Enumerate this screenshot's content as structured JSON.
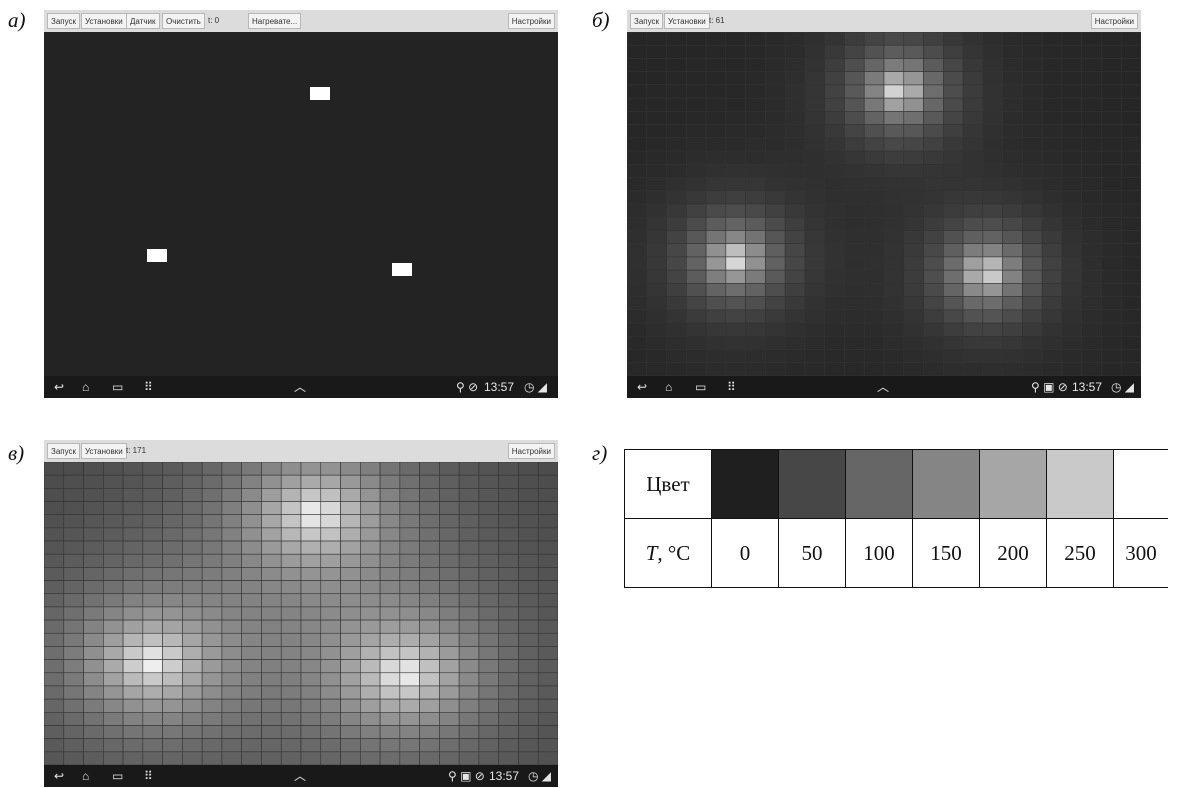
{
  "panels": [
    {
      "label": "а)",
      "toolbar": [
        "Запуск",
        "Установки",
        "Датчик",
        "Очистить",
        "t: 0",
        "Нагревате..."
      ],
      "settings": "Настройки",
      "time": "13:57",
      "t": 0
    },
    {
      "label": "б)",
      "toolbar": [
        "Запуск",
        "Установки",
        "t: 61"
      ],
      "settings": "Настройки",
      "time": "13:57",
      "t": 61
    },
    {
      "label": "в)",
      "toolbar": [
        "Запуск",
        "Установки",
        "t: 171"
      ],
      "settings": "Настройки",
      "time": "13:57",
      "t": 171
    }
  ],
  "legend": {
    "label": "г)",
    "row1_header": "Цвет",
    "row2_header_italic": "T",
    "row2_header_rest": ", °C",
    "temps": [
      "0",
      "50",
      "100",
      "150",
      "200",
      "250",
      "300"
    ],
    "colors": [
      "#1f1f1f",
      "#474747",
      "#666666",
      "#858585",
      "#a6a6a6",
      "#c9c9c9",
      "#ffffff"
    ]
  },
  "colors": {
    "background": "#262626",
    "hot": "#ffffff",
    "toolbar": "#dcdcdc",
    "navbar": "#191919"
  }
}
